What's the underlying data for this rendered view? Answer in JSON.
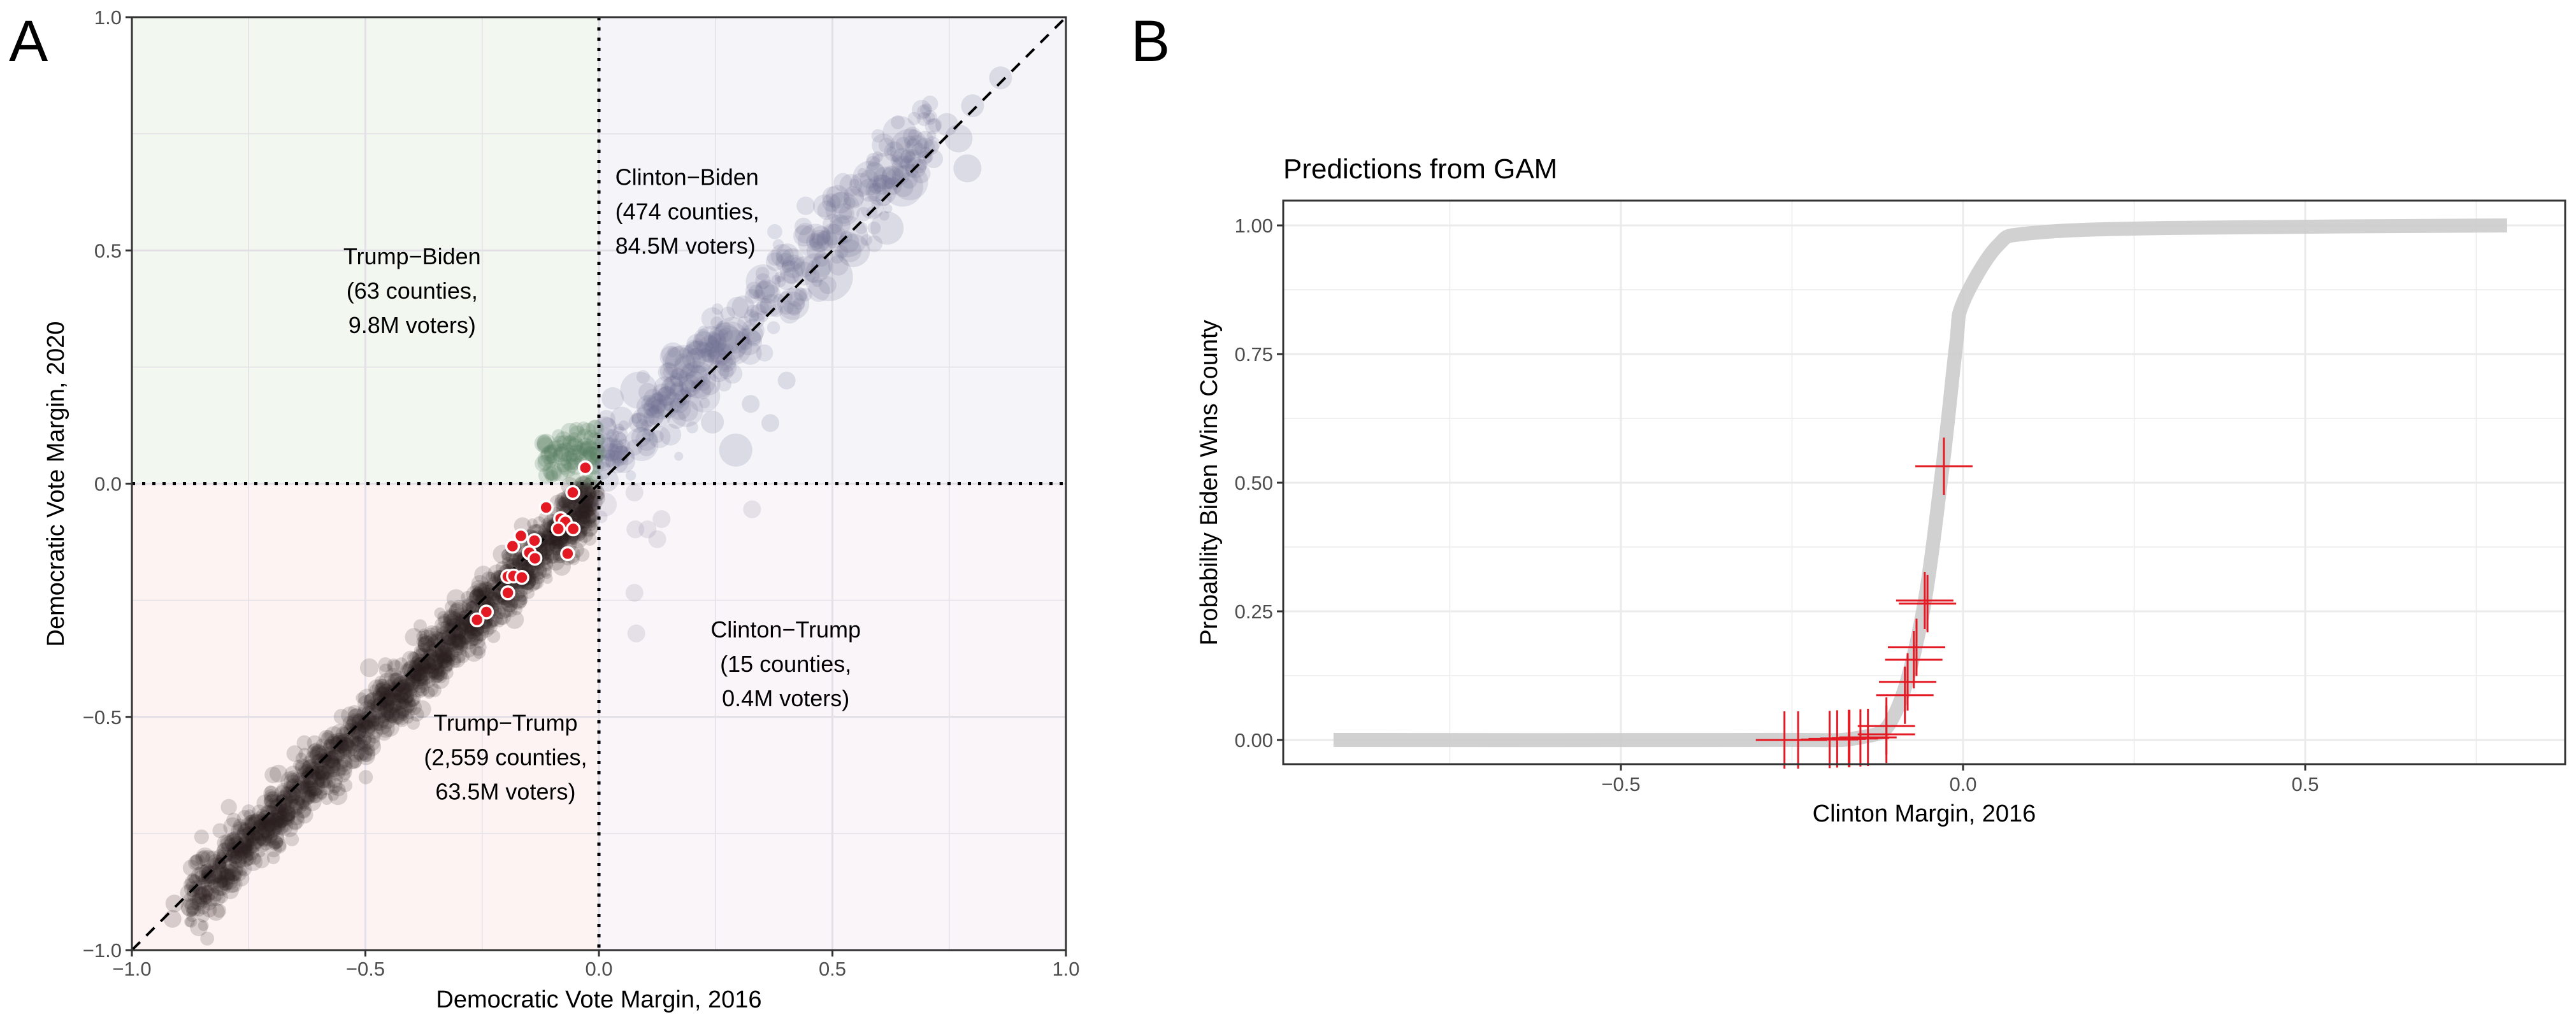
{
  "chart_data": [
    {
      "panel_label": "A",
      "type": "scatter",
      "title": "",
      "xlabel": "Democratic Vote Margin, 2016",
      "ylabel": "Democratic Vote Margin, 2020",
      "xlim": [
        -1.0,
        1.0
      ],
      "ylim": [
        -1.0,
        1.0
      ],
      "x_ticks": [
        -1.0,
        -0.5,
        0.0,
        0.5,
        1.0
      ],
      "x_tick_labels": [
        "−1.0",
        "−0.5",
        "0.0",
        "0.5",
        "1.0"
      ],
      "y_ticks": [
        -1.0,
        -0.5,
        0.0,
        0.5,
        1.0
      ],
      "y_tick_labels": [
        "−1.0",
        "−0.5",
        "0.0",
        "0.5",
        "1.0"
      ],
      "grid": true,
      "reference_lines": [
        {
          "type": "diagonal",
          "style": "dashed",
          "from": [
            -1,
            -1
          ],
          "to": [
            1,
            1
          ]
        },
        {
          "type": "vertical",
          "style": "dotted",
          "x": 0
        },
        {
          "type": "horizontal",
          "style": "dotted",
          "y": 0
        }
      ],
      "regions": [
        {
          "name": "Trump-Biden",
          "x": [
            -1,
            0
          ],
          "y": [
            0,
            1
          ],
          "color": "#f2f7f0",
          "label_lines": [
            "Trump−Biden",
            "(63 counties,",
            "9.8M voters)"
          ],
          "label_pos": [
            -0.4,
            0.47
          ],
          "align": "middle"
        },
        {
          "name": "Clinton-Biden",
          "x": [
            0,
            1
          ],
          "y": [
            0,
            1
          ],
          "color": "#f4f4f9",
          "label_lines": [
            "Clinton−Biden",
            "(474 counties,",
            "84.5M voters)"
          ],
          "label_pos": [
            0.035,
            0.64
          ],
          "align": "start"
        },
        {
          "name": "Trump-Trump",
          "x": [
            -1,
            0
          ],
          "y": [
            -1,
            0
          ],
          "color": "#fdf3f2",
          "label_lines": [
            "Trump−Trump",
            "(2,559 counties,",
            "63.5M voters)"
          ],
          "label_pos": [
            -0.2,
            -0.53
          ],
          "align": "middle"
        },
        {
          "name": "Clinton-Trump",
          "x": [
            0,
            1
          ],
          "y": [
            -1,
            0
          ],
          "color": "#f9f5f9",
          "label_lines": [
            "Clinton−Trump",
            "(15 counties,",
            "0.4M voters)"
          ],
          "label_pos": [
            0.4,
            -0.33
          ],
          "align": "middle"
        }
      ],
      "point_colors": {
        "Trump-Trump": "#2b1d1d",
        "Trump-Biden": "#4e7a58",
        "Clinton-Biden": "#6a6a8c",
        "Clinton-Trump": "#8a7f9a"
      },
      "highlight_color": "#e31a23",
      "highlighted_points": [
        {
          "x": -0.029,
          "y": 0.034
        },
        {
          "x": -0.056,
          "y": -0.019
        },
        {
          "x": -0.113,
          "y": -0.051
        },
        {
          "x": -0.082,
          "y": -0.075
        },
        {
          "x": -0.072,
          "y": -0.082
        },
        {
          "x": -0.087,
          "y": -0.097
        },
        {
          "x": -0.055,
          "y": -0.097
        },
        {
          "x": -0.167,
          "y": -0.112
        },
        {
          "x": -0.138,
          "y": -0.122
        },
        {
          "x": -0.185,
          "y": -0.134
        },
        {
          "x": -0.149,
          "y": -0.148
        },
        {
          "x": -0.137,
          "y": -0.16
        },
        {
          "x": -0.067,
          "y": -0.15
        },
        {
          "x": -0.195,
          "y": -0.199
        },
        {
          "x": -0.183,
          "y": -0.198
        },
        {
          "x": -0.165,
          "y": -0.201
        },
        {
          "x": -0.195,
          "y": -0.234
        },
        {
          "x": -0.241,
          "y": -0.275
        },
        {
          "x": -0.261,
          "y": -0.292
        }
      ],
      "notable_points": [
        {
          "x": 0.86,
          "y": 0.87,
          "size": 3
        },
        {
          "x": 0.8,
          "y": 0.81,
          "size": 3
        },
        {
          "x": 0.745,
          "y": 0.77,
          "size": 3
        },
        {
          "x": 0.77,
          "y": 0.74,
          "size": 4
        },
        {
          "x": 0.789,
          "y": 0.676,
          "size": 4
        },
        {
          "x": 0.617,
          "y": 0.548,
          "size": 5
        },
        {
          "x": 0.545,
          "y": 0.5,
          "size": 5
        },
        {
          "x": 0.492,
          "y": 0.443,
          "size": 8
        },
        {
          "x": 0.293,
          "y": 0.072,
          "size": 5
        },
        {
          "x": 0.325,
          "y": 0.171,
          "size": 2
        },
        {
          "x": 0.402,
          "y": 0.221,
          "size": 2
        },
        {
          "x": 0.367,
          "y": 0.13,
          "size": 2
        },
        {
          "x": 0.243,
          "y": 0.132,
          "size": 3
        },
        {
          "x": 0.076,
          "y": -0.019,
          "size": 2
        },
        {
          "x": 0.328,
          "y": -0.055,
          "size": 2
        },
        {
          "x": 0.078,
          "y": -0.098,
          "size": 2
        },
        {
          "x": 0.104,
          "y": -0.098,
          "size": 2
        },
        {
          "x": 0.134,
          "y": -0.076,
          "size": 2
        },
        {
          "x": 0.125,
          "y": -0.119,
          "size": 2
        },
        {
          "x": 0.076,
          "y": -0.234,
          "size": 2
        },
        {
          "x": 0.08,
          "y": -0.321,
          "size": 2
        },
        {
          "x": -0.913,
          "y": -0.933,
          "size": 2
        },
        {
          "x": -0.909,
          "y": -0.9,
          "size": 2
        },
        {
          "x": -0.82,
          "y": -0.918,
          "size": 2
        },
        {
          "x": -0.84,
          "y": -0.88,
          "size": 2
        }
      ]
    },
    {
      "panel_label": "B",
      "type": "line",
      "title": "Predictions from GAM",
      "xlabel": "Clinton Margin, 2016",
      "ylabel": "Probability Biden Wins County",
      "xlim": [
        -1.0,
        0.85
      ],
      "ylim": [
        -0.05,
        1.05
      ],
      "x_ticks": [
        -0.5,
        0.0,
        0.5
      ],
      "x_tick_labels": [
        "−0.5",
        "0.0",
        "0.5"
      ],
      "y_ticks": [
        0.0,
        0.25,
        0.5,
        0.75,
        1.0
      ],
      "y_tick_labels": [
        "0.00",
        "0.25",
        "0.50",
        "0.75",
        "1.00"
      ],
      "grid": true,
      "series": [
        {
          "name": "GAM prediction",
          "color": "#cccccc",
          "x_range": [
            -0.92,
            0.795
          ],
          "shape": "logistic",
          "midpoint": -0.03,
          "steepness": 45,
          "points": [
            {
              "x": -0.92,
              "y": 0.0
            },
            {
              "x": -0.3,
              "y": 0.0
            },
            {
              "x": -0.15,
              "y": 0.005
            },
            {
              "x": -0.1,
              "y": 0.05
            },
            {
              "x": -0.06,
              "y": 0.24
            },
            {
              "x": -0.03,
              "y": 0.53
            },
            {
              "x": -0.01,
              "y": 0.77
            },
            {
              "x": 0.0,
              "y": 0.85
            },
            {
              "x": 0.05,
              "y": 0.96
            },
            {
              "x": 0.1,
              "y": 0.985
            },
            {
              "x": 0.3,
              "y": 0.995
            },
            {
              "x": 0.795,
              "y": 1.0
            }
          ]
        }
      ],
      "marker_color": "#e31a23",
      "markers": [
        {
          "x": -0.028,
          "y": 0.532
        },
        {
          "x": -0.056,
          "y": 0.271
        },
        {
          "x": -0.052,
          "y": 0.265
        },
        {
          "x": -0.068,
          "y": 0.18
        },
        {
          "x": -0.072,
          "y": 0.156
        },
        {
          "x": -0.081,
          "y": 0.113
        },
        {
          "x": -0.085,
          "y": 0.087
        },
        {
          "x": -0.112,
          "y": 0.027
        },
        {
          "x": -0.112,
          "y": 0.011
        },
        {
          "x": -0.139,
          "y": 0.005
        },
        {
          "x": -0.15,
          "y": 0.004
        },
        {
          "x": -0.166,
          "y": 0.003
        },
        {
          "x": -0.167,
          "y": 0.003
        },
        {
          "x": -0.184,
          "y": 0.002
        },
        {
          "x": -0.195,
          "y": 0.001
        },
        {
          "x": -0.241,
          "y": 0.0
        },
        {
          "x": -0.261,
          "y": 0.0
        }
      ]
    }
  ]
}
